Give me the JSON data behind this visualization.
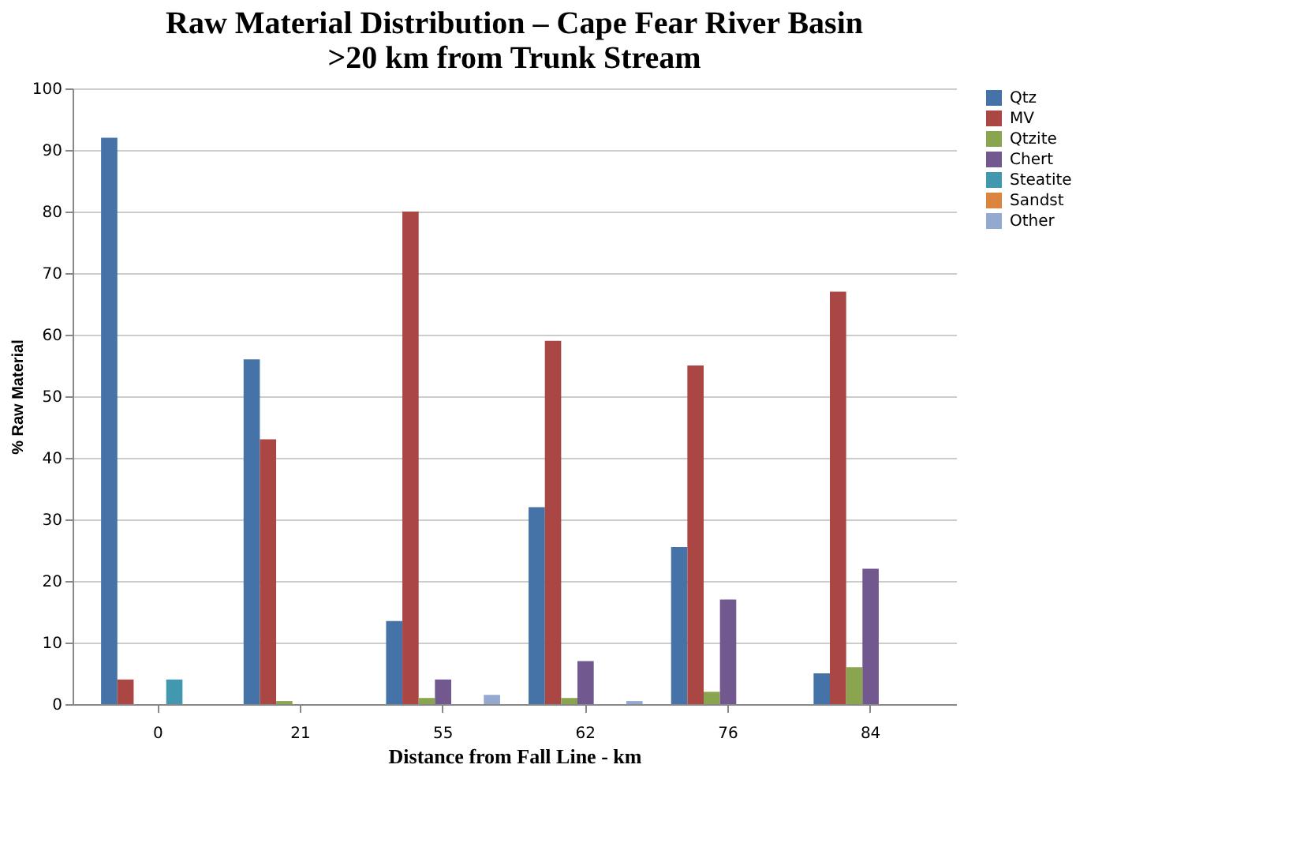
{
  "chart_data": {
    "type": "bar",
    "title": [
      "Raw Material Distribution  –  Cape Fear River Basin",
      ">20 km from Trunk Stream"
    ],
    "xlabel": "Distance from Fall Line - km",
    "ylabel": "% Raw Material",
    "categories": [
      "0",
      "21",
      "55",
      "62",
      "76",
      "84"
    ],
    "series": [
      {
        "name": "Qtz",
        "color": "#4572a7",
        "values": [
          92,
          56,
          13.5,
          32,
          25.5,
          5
        ]
      },
      {
        "name": "MV",
        "color": "#aa4643",
        "values": [
          4,
          43,
          80,
          59,
          55,
          67
        ]
      },
      {
        "name": "Qtzite",
        "color": "#89a54e",
        "values": [
          0,
          0.5,
          1,
          1,
          2,
          6
        ]
      },
      {
        "name": "Chert",
        "color": "#71588f",
        "values": [
          0,
          0,
          4,
          7,
          17,
          22
        ]
      },
      {
        "name": "Steatite",
        "color": "#4198af",
        "values": [
          4,
          0,
          0,
          0,
          0,
          0
        ]
      },
      {
        "name": "Sandst",
        "color": "#db843d",
        "values": [
          0,
          0,
          0,
          0,
          0,
          0
        ]
      },
      {
        "name": "Other",
        "color": "#93a9cf",
        "values": [
          0,
          0,
          1.5,
          0.5,
          0,
          0
        ]
      }
    ],
    "ylim": [
      0,
      100
    ],
    "yticks": [
      0,
      10,
      20,
      30,
      40,
      50,
      60,
      70,
      80,
      90,
      100
    ],
    "grid": "y",
    "legend": "right"
  }
}
